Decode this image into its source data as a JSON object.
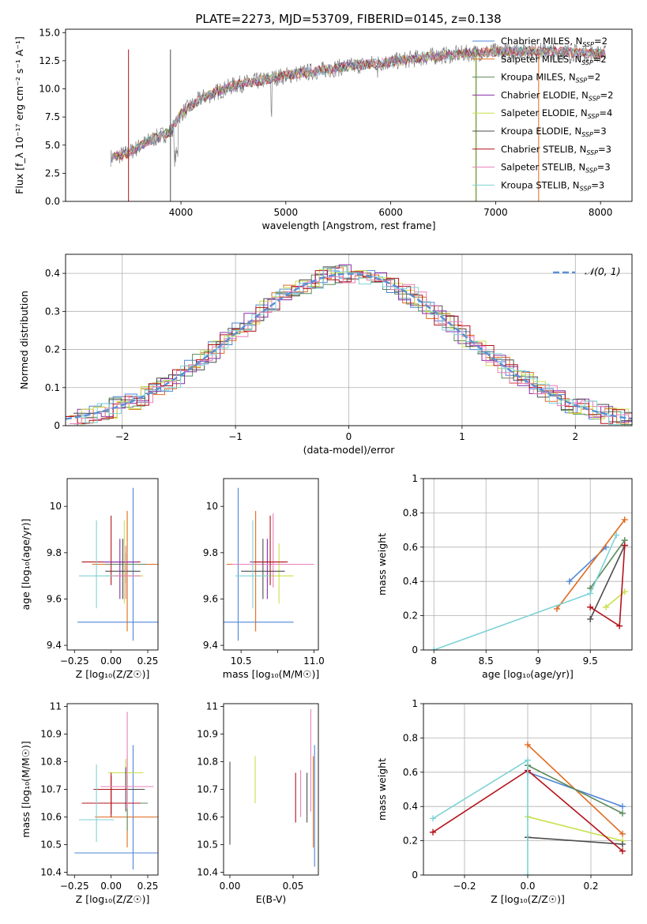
{
  "title": "PLATE=2273, MJD=53709, FIBERID=0145, z=0.138",
  "colors": [
    "#4f86d6",
    "#e06a1e",
    "#5b8a5b",
    "#8a2da8",
    "#c8e04b",
    "#4d4d4d",
    "#b5121b",
    "#e87fb8",
    "#7fd2d6"
  ],
  "chart_data": [
    {
      "id": "spectrum",
      "type": "line",
      "xlabel": "wavelength [Angstrom, rest frame]",
      "ylabel": "Flux [f_λ 10⁻¹⁷ erg cm⁻² s⁻¹ A⁻¹]",
      "xlim": [
        2900,
        8300
      ],
      "ylim": [
        0,
        15.3
      ],
      "xticks": [
        4000,
        5000,
        6000,
        7000,
        8000
      ],
      "yticks": [
        0.0,
        2.5,
        5.0,
        7.5,
        10.0,
        12.5,
        15.0
      ],
      "legend_position": "top-right",
      "series": [
        {
          "name": "Chabrier MILES, N_SSP=2"
        },
        {
          "name": "Salpeter MILES, N_SSP=2"
        },
        {
          "name": "Kroupa MILES, N_SSP=2"
        },
        {
          "name": "Chabrier ELODIE, N_SSP=2"
        },
        {
          "name": "Salpeter ELODIE, N_SSP=4"
        },
        {
          "name": "Kroupa ELODIE, N_SSP=3"
        },
        {
          "name": "Chabrier STELIB, N_SSP=3"
        },
        {
          "name": "Salpeter STELIB, N_SSP=3"
        },
        {
          "name": "Kroupa STELIB, N_SSP=3"
        }
      ],
      "continuum": {
        "x": [
          3300,
          3500,
          3700,
          3900,
          4000,
          4200,
          4500,
          4800,
          5000,
          5300,
          5600,
          6000,
          6400,
          6800,
          7200,
          7600,
          8000
        ],
        "y": [
          3.8,
          4.3,
          5.4,
          6.2,
          7.8,
          9.2,
          10.3,
          10.8,
          11.2,
          11.6,
          12.0,
          12.4,
          12.9,
          13.2,
          13.4,
          13.3,
          13.1
        ]
      }
    },
    {
      "id": "residuals",
      "type": "step",
      "xlabel": "(data-model)/error",
      "ylabel": "Normed distribution",
      "xlim": [
        -2.5,
        2.5
      ],
      "ylim": [
        0,
        0.45
      ],
      "xticks": [
        -2,
        -1,
        0,
        1,
        2
      ],
      "yticks": [
        0.0,
        0.1,
        0.2,
        0.3,
        0.4
      ],
      "grid": true,
      "legend_position": "top-right",
      "legend": "𝒩(0, 1)"
    },
    {
      "id": "age_vs_Z",
      "type": "errorbar",
      "xlabel": "Z [log₁₀(Z/Z☉)]",
      "ylabel": "age [log₁₀(age/yr)]",
      "xlim": [
        -0.3,
        0.32
      ],
      "ylim": [
        9.38,
        10.12
      ],
      "xticks": [
        -0.25,
        0.0,
        0.25
      ],
      "xticklabels": [
        "−0.25",
        "0.00",
        "0.25"
      ],
      "yticks": [
        9.4,
        9.6,
        9.8,
        10.0
      ],
      "points": [
        {
          "x": 0.15,
          "xerr": 0.38,
          "y": 9.5,
          "yerr_lo": 0.08,
          "yerr_hi": 0.58,
          "c": 0
        },
        {
          "x": 0.11,
          "xerr": 0.24,
          "y": 9.75,
          "yerr_lo": 0.29,
          "yerr_hi": 0.23,
          "c": 1
        },
        {
          "x": 0.1,
          "xerr": 0.14,
          "y": 9.75,
          "yerr_lo": 0.08,
          "yerr_hi": 0.05,
          "c": 2
        },
        {
          "x": 0.09,
          "xerr": 0.13,
          "y": 9.7,
          "yerr_lo": 0.12,
          "yerr_hi": 0.24,
          "c": 4
        },
        {
          "x": 0.08,
          "xerr": 0.12,
          "y": 9.72,
          "yerr_lo": 0.12,
          "yerr_hi": 0.14,
          "c": 5
        },
        {
          "x": 0.0,
          "xerr": 0.2,
          "y": 9.76,
          "yerr_lo": 0.1,
          "yerr_hi": 0.2,
          "c": 6
        },
        {
          "x": 0.06,
          "xerr": 0.12,
          "y": 9.76,
          "yerr_lo": 0.16,
          "yerr_hi": 0.1,
          "c": 3
        },
        {
          "x": 0.1,
          "xerr": 0.1,
          "y": 9.7,
          "yerr_lo": 0.1,
          "yerr_hi": 0.13,
          "c": 7
        },
        {
          "x": -0.1,
          "xerr": 0.12,
          "y": 9.7,
          "yerr_lo": 0.14,
          "yerr_hi": 0.24,
          "c": 8
        }
      ]
    },
    {
      "id": "age_vs_mass",
      "type": "errorbar",
      "xlabel": "mass [log₁₀(M/M☉)]",
      "ylabel": "",
      "xlim": [
        10.38,
        11.03
      ],
      "ylim": [
        9.38,
        10.12
      ],
      "xticks": [
        10.5,
        10.75,
        11.0
      ],
      "xticklabels": [
        "10.5",
        "",
        "11.0"
      ],
      "yticks": [
        9.4,
        9.6,
        9.8,
        10.0
      ],
      "points": [
        {
          "x": 10.48,
          "xerr": 0.38,
          "y": 9.5,
          "yerr_lo": 0.08,
          "yerr_hi": 0.58,
          "c": 0
        },
        {
          "x": 10.6,
          "xerr": 0.2,
          "y": 9.75,
          "yerr_lo": 0.29,
          "yerr_hi": 0.23,
          "c": 1
        },
        {
          "x": 10.68,
          "xerr": 0.12,
          "y": 9.76,
          "yerr_lo": 0.16,
          "yerr_hi": 0.1,
          "c": 3
        },
        {
          "x": 10.76,
          "xerr": 0.1,
          "y": 9.7,
          "yerr_lo": 0.12,
          "yerr_hi": 0.14,
          "c": 4
        },
        {
          "x": 10.72,
          "xerr": 0.28,
          "y": 9.75,
          "yerr_lo": 0.1,
          "yerr_hi": 0.22,
          "c": 7
        },
        {
          "x": 10.65,
          "xerr": 0.15,
          "y": 9.72,
          "yerr_lo": 0.12,
          "yerr_hi": 0.14,
          "c": 5
        },
        {
          "x": 10.7,
          "xerr": 0.12,
          "y": 9.76,
          "yerr_lo": 0.1,
          "yerr_hi": 0.2,
          "c": 6
        },
        {
          "x": 10.58,
          "xerr": 0.12,
          "y": 9.7,
          "yerr_lo": 0.14,
          "yerr_hi": 0.24,
          "c": 8
        }
      ]
    },
    {
      "id": "weight_vs_age",
      "type": "line",
      "xlabel": "age [log₁₀(age/yr)]",
      "ylabel": "mass weight",
      "xlim": [
        7.9,
        9.9
      ],
      "ylim": [
        0,
        1.0
      ],
      "xticks": [
        8.0,
        8.5,
        9.0,
        9.5
      ],
      "yticks": [
        0.0,
        0.2,
        0.4,
        0.6,
        0.8,
        1.0
      ],
      "grid": true,
      "series": [
        {
          "c": 0,
          "x": [
            9.3,
            9.65
          ],
          "y": [
            0.4,
            0.6
          ]
        },
        {
          "c": 1,
          "x": [
            9.18,
            9.83
          ],
          "y": [
            0.24,
            0.76
          ]
        },
        {
          "c": 2,
          "x": [
            9.5,
            9.83
          ],
          "y": [
            0.36,
            0.64
          ]
        },
        {
          "c": 4,
          "x": [
            9.65,
            9.83
          ],
          "y": [
            0.25,
            0.34
          ]
        },
        {
          "c": 5,
          "x": [
            9.5,
            9.83
          ],
          "y": [
            0.18,
            0.61
          ]
        },
        {
          "c": 6,
          "x": [
            9.5,
            9.78,
            9.83
          ],
          "y": [
            0.25,
            0.14,
            0.61
          ]
        },
        {
          "c": 8,
          "x": [
            8.0,
            9.5,
            9.75
          ],
          "y": [
            0.0,
            0.33,
            0.67
          ]
        }
      ]
    },
    {
      "id": "mass_vs_Z",
      "type": "errorbar",
      "xlabel": "Z [log₁₀(Z/Z☉)]",
      "ylabel": "mass [log₁₀(M/M☉)]",
      "xlim": [
        -0.3,
        0.32
      ],
      "ylim": [
        10.39,
        11.01
      ],
      "xticks": [
        -0.25,
        0.0,
        0.25
      ],
      "xticklabels": [
        "−0.25",
        "0.00",
        "0.25"
      ],
      "yticks": [
        10.4,
        10.5,
        10.6,
        10.7,
        10.8,
        10.9,
        11.0
      ],
      "points": [
        {
          "x": 0.15,
          "xerr": 0.4,
          "y": 10.47,
          "yerr_lo": 0.06,
          "yerr_hi": 0.39,
          "c": 0
        },
        {
          "x": 0.11,
          "xerr": 0.22,
          "y": 10.6,
          "yerr_lo": 0.11,
          "yerr_hi": 0.22,
          "c": 1
        },
        {
          "x": 0.11,
          "xerr": 0.14,
          "y": 10.65,
          "yerr_lo": 0.1,
          "yerr_hi": 0.1,
          "c": 2
        },
        {
          "x": 0.1,
          "xerr": 0.12,
          "y": 10.76,
          "yerr_lo": 0.06,
          "yerr_hi": 0.05,
          "c": 4
        },
        {
          "x": 0.1,
          "xerr": 0.13,
          "y": 10.7,
          "yerr_lo": 0.08,
          "yerr_hi": 0.08,
          "c": 5
        },
        {
          "x": 0.0,
          "xerr": 0.2,
          "y": 10.65,
          "yerr_lo": 0.05,
          "yerr_hi": 0.1,
          "c": 6
        },
        {
          "x": 0.0,
          "xerr": 0.12,
          "y": 10.7,
          "yerr_lo": 0.09,
          "yerr_hi": 0.06,
          "c": 6
        },
        {
          "x": 0.11,
          "xerr": 0.18,
          "y": 10.71,
          "yerr_lo": 0.08,
          "yerr_hi": 0.27,
          "c": 7
        },
        {
          "x": -0.1,
          "xerr": 0.12,
          "y": 10.59,
          "yerr_lo": 0.08,
          "yerr_hi": 0.2,
          "c": 8
        }
      ]
    },
    {
      "id": "mass_vs_EBV",
      "type": "errorbar",
      "xlabel": "E(B-V)",
      "ylabel": "",
      "xlim": [
        -0.005,
        0.07
      ],
      "ylim": [
        10.39,
        11.01
      ],
      "xticks": [
        0.0,
        0.05
      ],
      "xticklabels": [
        "0.00",
        "0.05"
      ],
      "yticks": [
        10.4,
        10.5,
        10.6,
        10.7,
        10.8,
        10.9,
        11.0
      ],
      "points": [
        {
          "x": 0.0,
          "xerr": 0,
          "y": 10.64,
          "yerr_lo": 0.14,
          "yerr_hi": 0.16,
          "c": 5
        },
        {
          "x": 0.02,
          "xerr": 0,
          "y": 10.73,
          "yerr_lo": 0.08,
          "yerr_hi": 0.09,
          "c": 4
        },
        {
          "x": 0.052,
          "xerr": 0,
          "y": 10.68,
          "yerr_lo": 0.1,
          "yerr_hi": 0.08,
          "c": 6
        },
        {
          "x": 0.056,
          "xerr": 0,
          "y": 10.7,
          "yerr_lo": 0.1,
          "yerr_hi": 0.07,
          "c": 7
        },
        {
          "x": 0.061,
          "xerr": 0,
          "y": 10.69,
          "yerr_lo": 0.11,
          "yerr_hi": 0.07,
          "c": 5
        },
        {
          "x": 0.064,
          "xerr": 0,
          "y": 10.8,
          "yerr_lo": 0.18,
          "yerr_hi": 0.19,
          "c": 7
        },
        {
          "x": 0.066,
          "xerr": 0,
          "y": 10.6,
          "yerr_lo": 0.11,
          "yerr_hi": 0.22,
          "c": 1
        },
        {
          "x": 0.067,
          "xerr": 0,
          "y": 10.64,
          "yerr_lo": 0.22,
          "yerr_hi": 0.22,
          "c": 0
        }
      ]
    },
    {
      "id": "weight_vs_Z",
      "type": "line",
      "xlabel": "Z [log₁₀(Z/Z☉)]",
      "ylabel": "mass weight",
      "xlim": [
        -0.33,
        0.33
      ],
      "ylim": [
        0,
        1.0
      ],
      "xticks": [
        -0.2,
        0.0,
        0.2
      ],
      "xticklabels": [
        "−0.2",
        "0.0",
        "0.2"
      ],
      "yticks": [
        0.0,
        0.2,
        0.4,
        0.6,
        0.8,
        1.0
      ],
      "grid": true,
      "series": [
        {
          "c": 0,
          "x": [
            0.0,
            0.3
          ],
          "y": [
            0.6,
            0.4
          ]
        },
        {
          "c": 1,
          "x": [
            0.0,
            0.3
          ],
          "y": [
            0.76,
            0.24
          ]
        },
        {
          "c": 2,
          "x": [
            0.0,
            0.3
          ],
          "y": [
            0.64,
            0.36
          ]
        },
        {
          "c": 4,
          "x": [
            0.0,
            0.3
          ],
          "y": [
            0.34,
            0.2
          ]
        },
        {
          "c": 5,
          "x": [
            0.0,
            0.3
          ],
          "y": [
            0.22,
            0.18
          ]
        },
        {
          "c": 6,
          "x": [
            -0.3,
            0.0,
            0.3
          ],
          "y": [
            0.25,
            0.61,
            0.14
          ]
        },
        {
          "c": 8,
          "x": [
            -0.3,
            0.0,
            0.0
          ],
          "y": [
            0.33,
            0.67,
            0.0
          ]
        }
      ]
    }
  ]
}
